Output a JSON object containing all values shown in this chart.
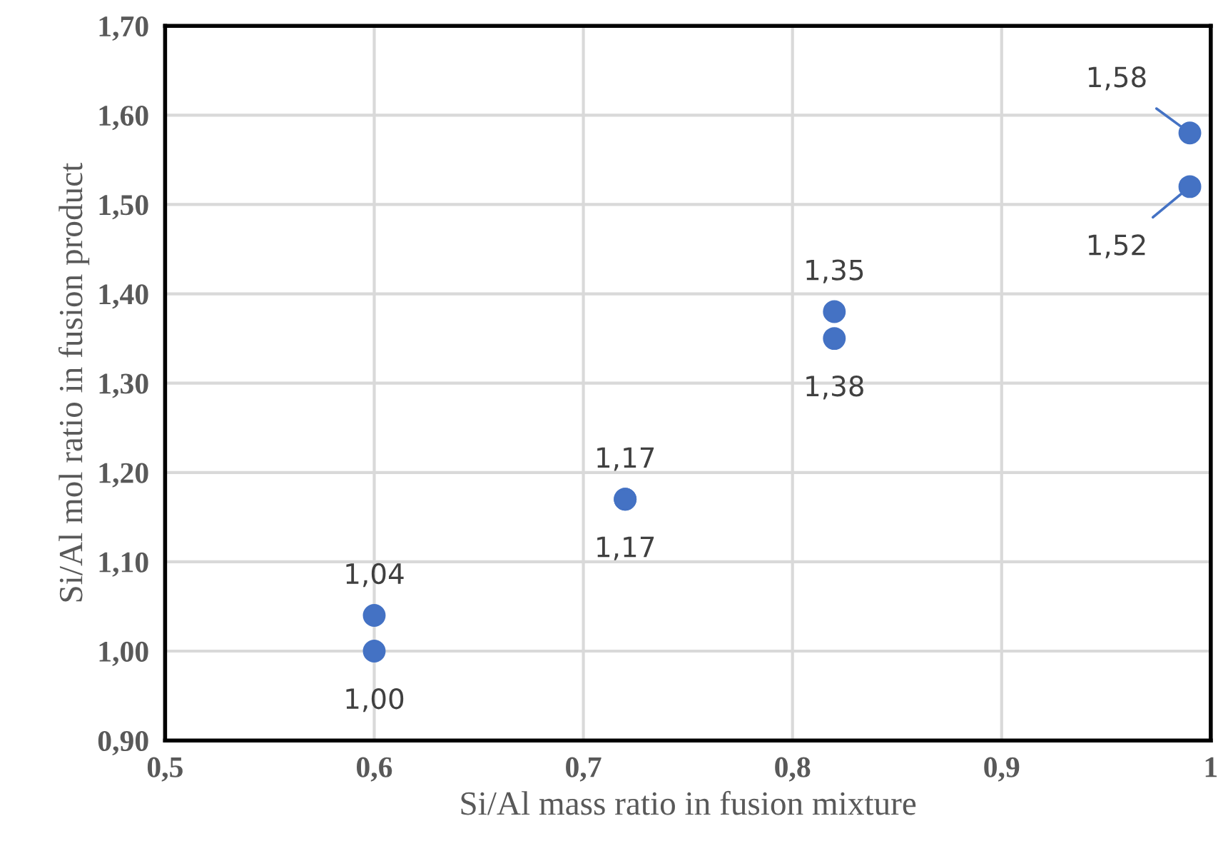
{
  "chart_data": {
    "type": "scatter",
    "xlabel": "Si/Al mass ratio in fusion mixture",
    "ylabel": "Si/Al mol ratio in fusion product",
    "x": [
      0.6,
      0.6,
      0.72,
      0.72,
      0.82,
      0.82,
      0.99,
      0.99
    ],
    "values": [
      1.04,
      1.0,
      1.17,
      1.17,
      1.35,
      1.38,
      1.58,
      1.52
    ],
    "value_labels": [
      "1,04",
      "1,00",
      "1,17",
      "1,17",
      "1,35",
      "1,38",
      "1,58",
      "1,52"
    ],
    "color": "#4472c4",
    "marker": "circle",
    "grid": true,
    "xlim": [
      0.5,
      1.0
    ],
    "xticks": [
      {
        "value": 0.5,
        "label": "0,5"
      },
      {
        "value": 0.6,
        "label": "0,6"
      },
      {
        "value": 0.7,
        "label": "0,7"
      },
      {
        "value": 0.8,
        "label": "0,8"
      },
      {
        "value": 0.9,
        "label": "0,9"
      },
      1
    ],
    "ylim": [
      0.9,
      1.7
    ],
    "yticks": [
      {
        "value": 0.9,
        "label": "0,90"
      },
      {
        "value": 1.0,
        "label": "1,00"
      },
      {
        "value": 1.1,
        "label": "1,10"
      },
      {
        "value": 1.2,
        "label": "1,20"
      },
      {
        "value": 1.3,
        "label": "1,30"
      },
      {
        "value": 1.4,
        "label": "1,40"
      },
      {
        "value": 1.5,
        "label": "1,50"
      },
      {
        "value": 1.6,
        "label": "1,60"
      },
      {
        "value": 1.7,
        "label": "1,70"
      }
    ]
  }
}
